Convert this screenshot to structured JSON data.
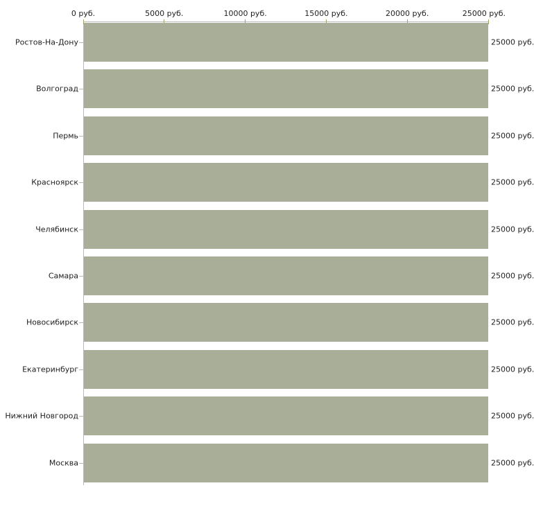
{
  "chart_data": {
    "type": "bar",
    "orientation": "horizontal",
    "title": "",
    "xlabel": "",
    "ylabel": "",
    "grid": false,
    "legend": false,
    "x_axis": {
      "position": "top",
      "unit": "руб.",
      "range": [
        0,
        25000
      ],
      "tick_values": [
        0,
        5000,
        10000,
        15000,
        20000,
        25000
      ],
      "tick_labels": [
        "0 руб.",
        "5000 руб.",
        "10000 руб.",
        "15000 руб.",
        "20000 руб.",
        "25000 руб."
      ]
    },
    "categories": [
      "Ростов-На-Дону",
      "Волгоград",
      "Пермь",
      "Красноярск",
      "Челябинск",
      "Самара",
      "Новосибирск",
      "Екатеринбург",
      "Нижний Новгород",
      "Москва"
    ],
    "values": [
      25000,
      25000,
      25000,
      25000,
      25000,
      25000,
      25000,
      25000,
      25000,
      25000
    ],
    "value_labels": [
      "25000 руб.",
      "25000 руб.",
      "25000 руб.",
      "25000 руб.",
      "25000 руб.",
      "25000 руб.",
      "25000 руб.",
      "25000 руб.",
      "25000 руб.",
      "25000 руб."
    ],
    "colors": {
      "background": "#ffffff",
      "bar": "#a8ae97",
      "axis_line": "#b9b9b9",
      "x_tick": "#9da366",
      "category_tick": "#b6baa8",
      "text": "#1e1e1e"
    }
  }
}
